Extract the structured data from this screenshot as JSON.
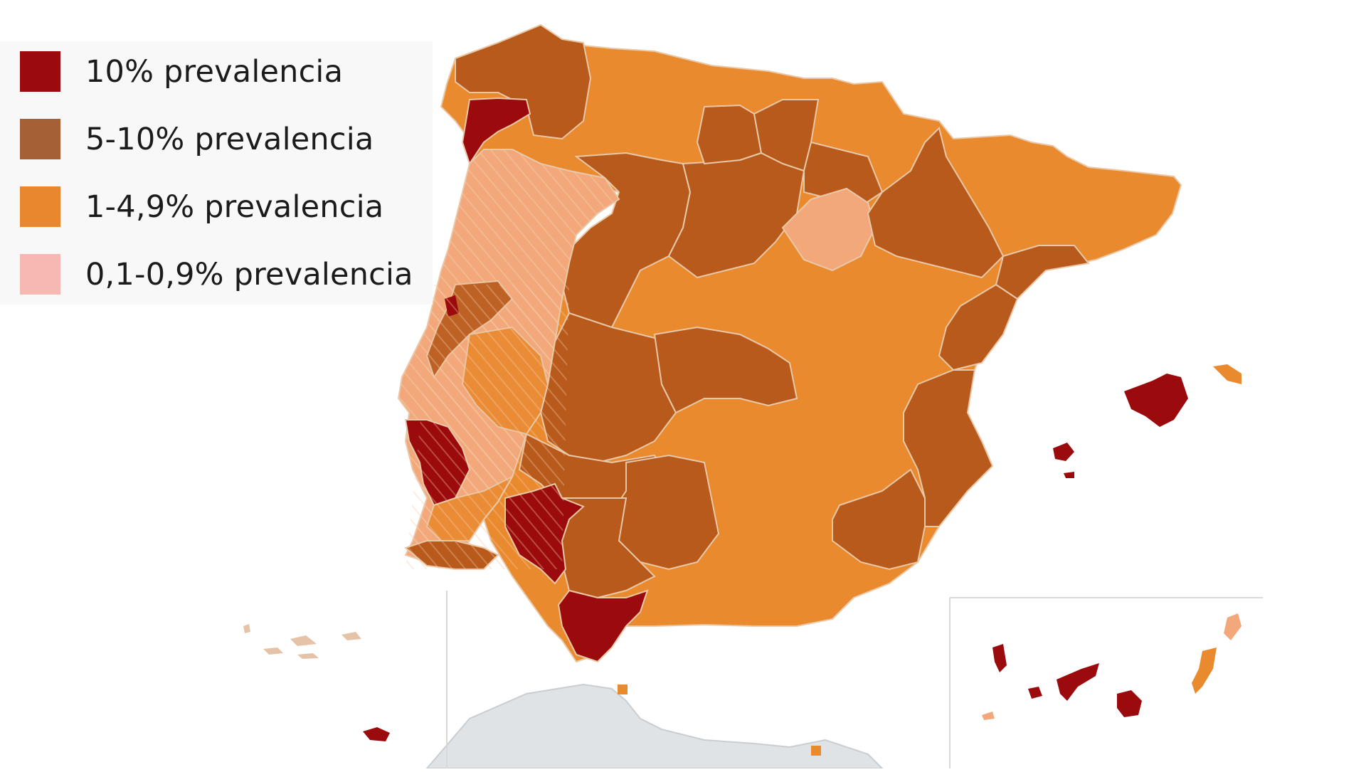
{
  "legend": {
    "items": [
      {
        "label": "10% prevalencia",
        "color": "#9b0a0c"
      },
      {
        "label": "5-10% prevalencia",
        "color": "#a66036"
      },
      {
        "label": "1-4,9% prevalencia",
        "color": "#e9872f"
      },
      {
        "label": "0,1-0,9% prevalencia",
        "color": "#f7b7b2"
      }
    ]
  },
  "map": {
    "palette": {
      "high": "#9b0a0c",
      "mid": "#b85a1c",
      "low": "#ea8a2e",
      "verylow": "#f2a87a",
      "border": "#e9c8a8",
      "africa": "#dfe3e6",
      "background": "#ffffff",
      "hatch": "#f4c8a4"
    },
    "regions": [
      "Spain",
      "Portugal",
      "Balearic Islands",
      "Canary Islands",
      "Azores",
      "Madeira",
      "Ceuta",
      "Melilla",
      "North Africa"
    ]
  }
}
